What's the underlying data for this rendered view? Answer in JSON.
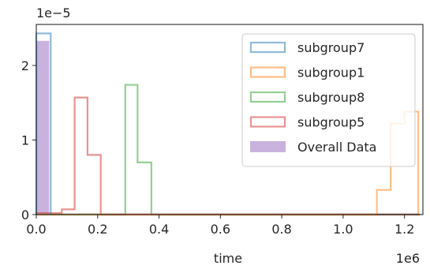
{
  "chart_data": {
    "type": "histogram",
    "xlabel": "time",
    "ylabel": "",
    "x_offset_label": "1e6",
    "y_offset_label": "1e−5",
    "xlim": [
      0,
      1.26
    ],
    "ylim": [
      0,
      2.55
    ],
    "x_ticks": [
      {
        "value": 0.0,
        "label": "0.0"
      },
      {
        "value": 0.2,
        "label": "0.2"
      },
      {
        "value": 0.4,
        "label": "0.4"
      },
      {
        "value": 0.6,
        "label": "0.6"
      },
      {
        "value": 0.8,
        "label": "0.8"
      },
      {
        "value": 1.0,
        "label": "1.0"
      },
      {
        "value": 1.2,
        "label": "1.2"
      }
    ],
    "y_ticks": [
      {
        "value": 0,
        "label": "0"
      },
      {
        "value": 1,
        "label": "1"
      },
      {
        "value": 2,
        "label": "2"
      }
    ],
    "legend_position": "top-right",
    "series": [
      {
        "name": "subgroup7",
        "style": "step",
        "color": "#1f77b4",
        "bins": [
          [
            0.0,
            0.047,
            2.43
          ]
        ]
      },
      {
        "name": "subgroup1",
        "style": "step",
        "color": "#ff7f0e",
        "bins": [
          [
            0.0,
            1.11,
            0.0
          ],
          [
            1.11,
            1.155,
            0.33
          ],
          [
            1.155,
            1.2,
            1.22
          ],
          [
            1.2,
            1.245,
            1.38
          ]
        ]
      },
      {
        "name": "subgroup8",
        "style": "step",
        "color": "#2ca02c",
        "bins": [
          [
            0.0,
            0.29,
            0.0
          ],
          [
            0.29,
            0.33,
            1.74
          ],
          [
            0.33,
            0.375,
            0.7
          ],
          [
            0.375,
            1.25,
            0.0
          ]
        ]
      },
      {
        "name": "subgroup5",
        "style": "step",
        "color": "#d62728",
        "bins": [
          [
            0.0,
            0.043,
            0.02
          ],
          [
            0.043,
            0.083,
            0.02
          ],
          [
            0.083,
            0.125,
            0.07
          ],
          [
            0.125,
            0.167,
            1.57
          ],
          [
            0.167,
            0.21,
            0.8
          ],
          [
            0.21,
            1.25,
            0.0
          ]
        ]
      },
      {
        "name": "Overall Data",
        "style": "filled",
        "color": "#9467bd",
        "bins": [
          [
            0.0,
            0.042,
            2.33
          ],
          [
            0.042,
            1.25,
            0.015
          ]
        ]
      }
    ]
  }
}
